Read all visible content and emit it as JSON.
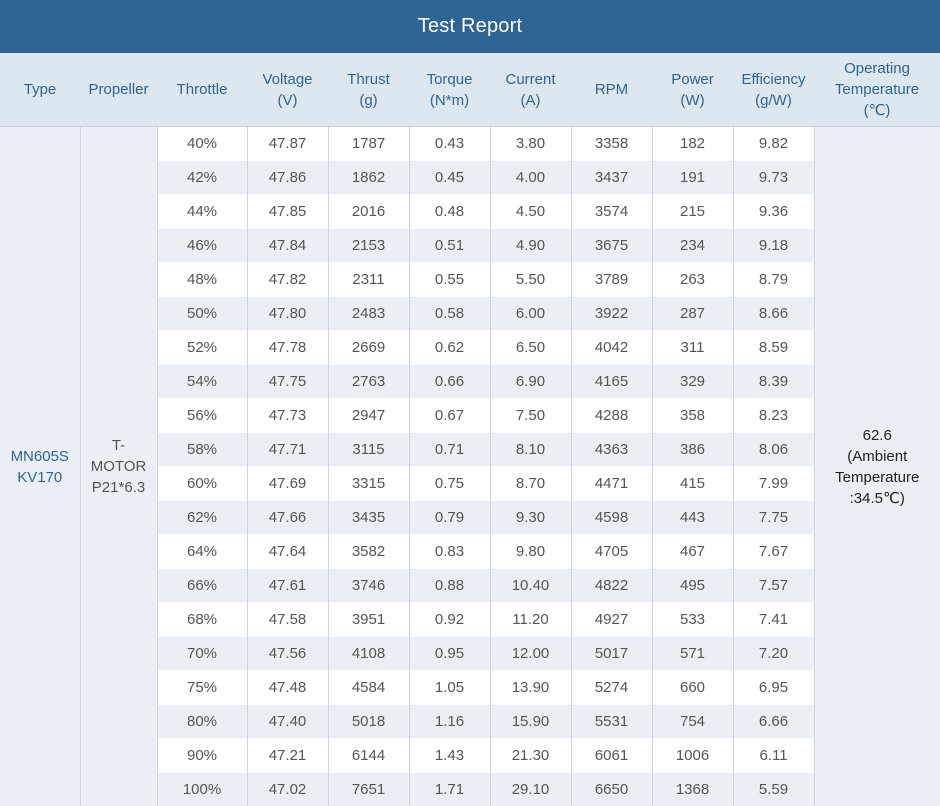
{
  "title": "Test Report",
  "headers": {
    "type": "Type",
    "propeller": "Propeller",
    "throttle": "Throttle",
    "voltage": [
      "Voltage",
      "(V)"
    ],
    "thrust": [
      "Thrust",
      "(g)"
    ],
    "torque": [
      "Torque",
      "(N*m)"
    ],
    "current": [
      "Current",
      "(A)"
    ],
    "rpm": "RPM",
    "power": [
      "Power",
      "(W)"
    ],
    "efficiency": [
      "Efficiency",
      "(g/W)"
    ],
    "op_temp": [
      "Operating",
      "Temperature",
      "(℃)"
    ]
  },
  "type_value": [
    "MN605S",
    "KV170"
  ],
  "propeller_value": [
    "T-",
    "MOTOR",
    "P21*6.3"
  ],
  "temperature_value": [
    "62.6",
    "(Ambient",
    "Temperature",
    ":34.5℃)"
  ],
  "rows": [
    [
      "40%",
      "47.87",
      "1787",
      "0.43",
      "3.80",
      "3358",
      "182",
      "9.82"
    ],
    [
      "42%",
      "47.86",
      "1862",
      "0.45",
      "4.00",
      "3437",
      "191",
      "9.73"
    ],
    [
      "44%",
      "47.85",
      "2016",
      "0.48",
      "4.50",
      "3574",
      "215",
      "9.36"
    ],
    [
      "46%",
      "47.84",
      "2153",
      "0.51",
      "4.90",
      "3675",
      "234",
      "9.18"
    ],
    [
      "48%",
      "47.82",
      "2311",
      "0.55",
      "5.50",
      "3789",
      "263",
      "8.79"
    ],
    [
      "50%",
      "47.80",
      "2483",
      "0.58",
      "6.00",
      "3922",
      "287",
      "8.66"
    ],
    [
      "52%",
      "47.78",
      "2669",
      "0.62",
      "6.50",
      "4042",
      "311",
      "8.59"
    ],
    [
      "54%",
      "47.75",
      "2763",
      "0.66",
      "6.90",
      "4165",
      "329",
      "8.39"
    ],
    [
      "56%",
      "47.73",
      "2947",
      "0.67",
      "7.50",
      "4288",
      "358",
      "8.23"
    ],
    [
      "58%",
      "47.71",
      "3115",
      "0.71",
      "8.10",
      "4363",
      "386",
      "8.06"
    ],
    [
      "60%",
      "47.69",
      "3315",
      "0.75",
      "8.70",
      "4471",
      "415",
      "7.99"
    ],
    [
      "62%",
      "47.66",
      "3435",
      "0.79",
      "9.30",
      "4598",
      "443",
      "7.75"
    ],
    [
      "64%",
      "47.64",
      "3582",
      "0.83",
      "9.80",
      "4705",
      "467",
      "7.67"
    ],
    [
      "66%",
      "47.61",
      "3746",
      "0.88",
      "10.40",
      "4822",
      "495",
      "7.57"
    ],
    [
      "68%",
      "47.58",
      "3951",
      "0.92",
      "11.20",
      "4927",
      "533",
      "7.41"
    ],
    [
      "70%",
      "47.56",
      "4108",
      "0.95",
      "12.00",
      "5017",
      "571",
      "7.20"
    ],
    [
      "75%",
      "47.48",
      "4584",
      "1.05",
      "13.90",
      "5274",
      "660",
      "6.95"
    ],
    [
      "80%",
      "47.40",
      "5018",
      "1.16",
      "15.90",
      "5531",
      "754",
      "6.66"
    ],
    [
      "90%",
      "47.21",
      "6144",
      "1.43",
      "21.30",
      "6061",
      "1006",
      "6.11"
    ],
    [
      "100%",
      "47.02",
      "7651",
      "1.71",
      "29.10",
      "6650",
      "1368",
      "5.59"
    ]
  ]
}
